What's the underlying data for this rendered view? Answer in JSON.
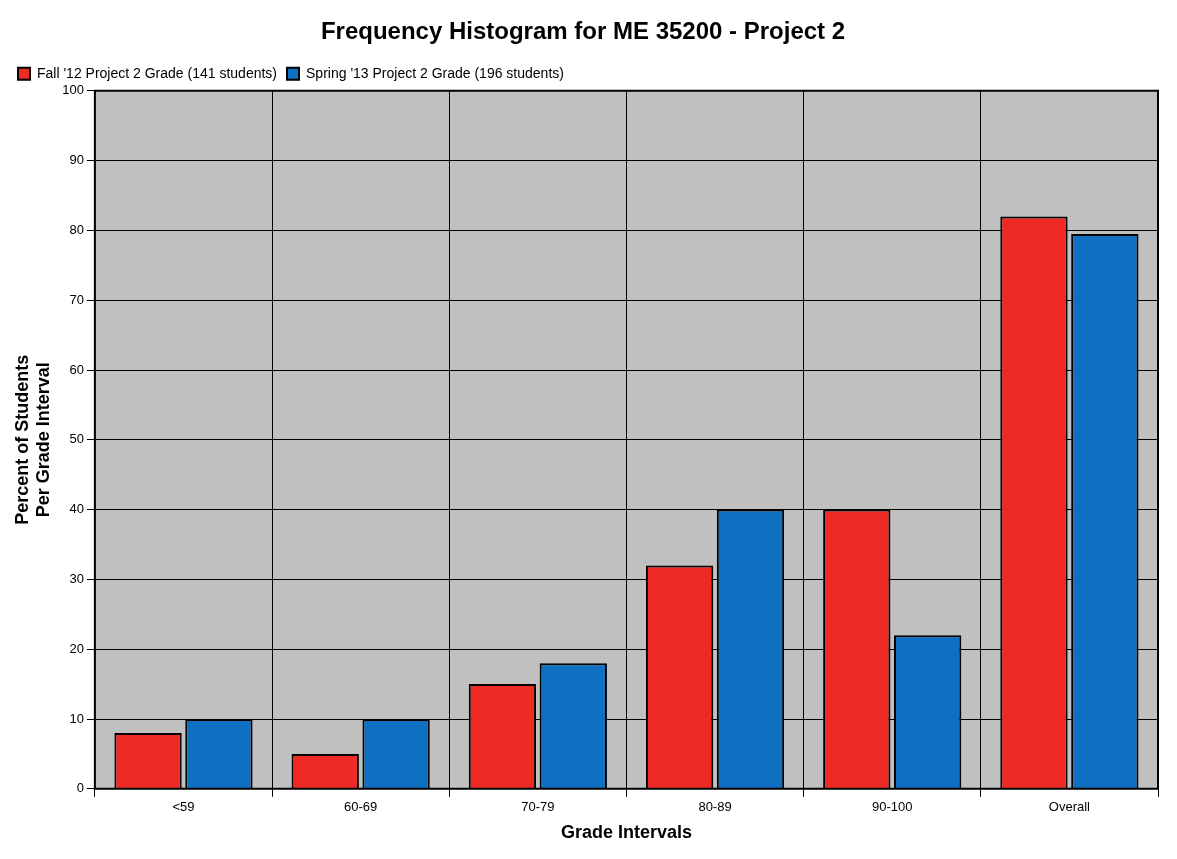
{
  "chart_data": {
    "type": "bar",
    "title": "Frequency Histogram for ME 35200 - Project 2",
    "xlabel": "Grade Intervals",
    "ylabel": "Percent of Students\nPer Grade Interval",
    "categories": [
      "<59",
      "60-69",
      "70-79",
      "80-89",
      "90-100",
      "Overall"
    ],
    "series": [
      {
        "name": "Fall '12 Project 2 Grade (141 students)",
        "color": "#ee2a24",
        "values": [
          8,
          5,
          15,
          32,
          40,
          82
        ]
      },
      {
        "name": "Spring '13 Project 2 Grade (196 students)",
        "color": "#0f6fc0",
        "values": [
          10,
          10,
          18,
          40,
          22,
          79.5
        ]
      }
    ],
    "ylim": [
      0,
      100
    ],
    "yticks": [
      0,
      10,
      20,
      30,
      40,
      50,
      60,
      70,
      80,
      90,
      100
    ],
    "grid": true,
    "legend": "top left"
  }
}
